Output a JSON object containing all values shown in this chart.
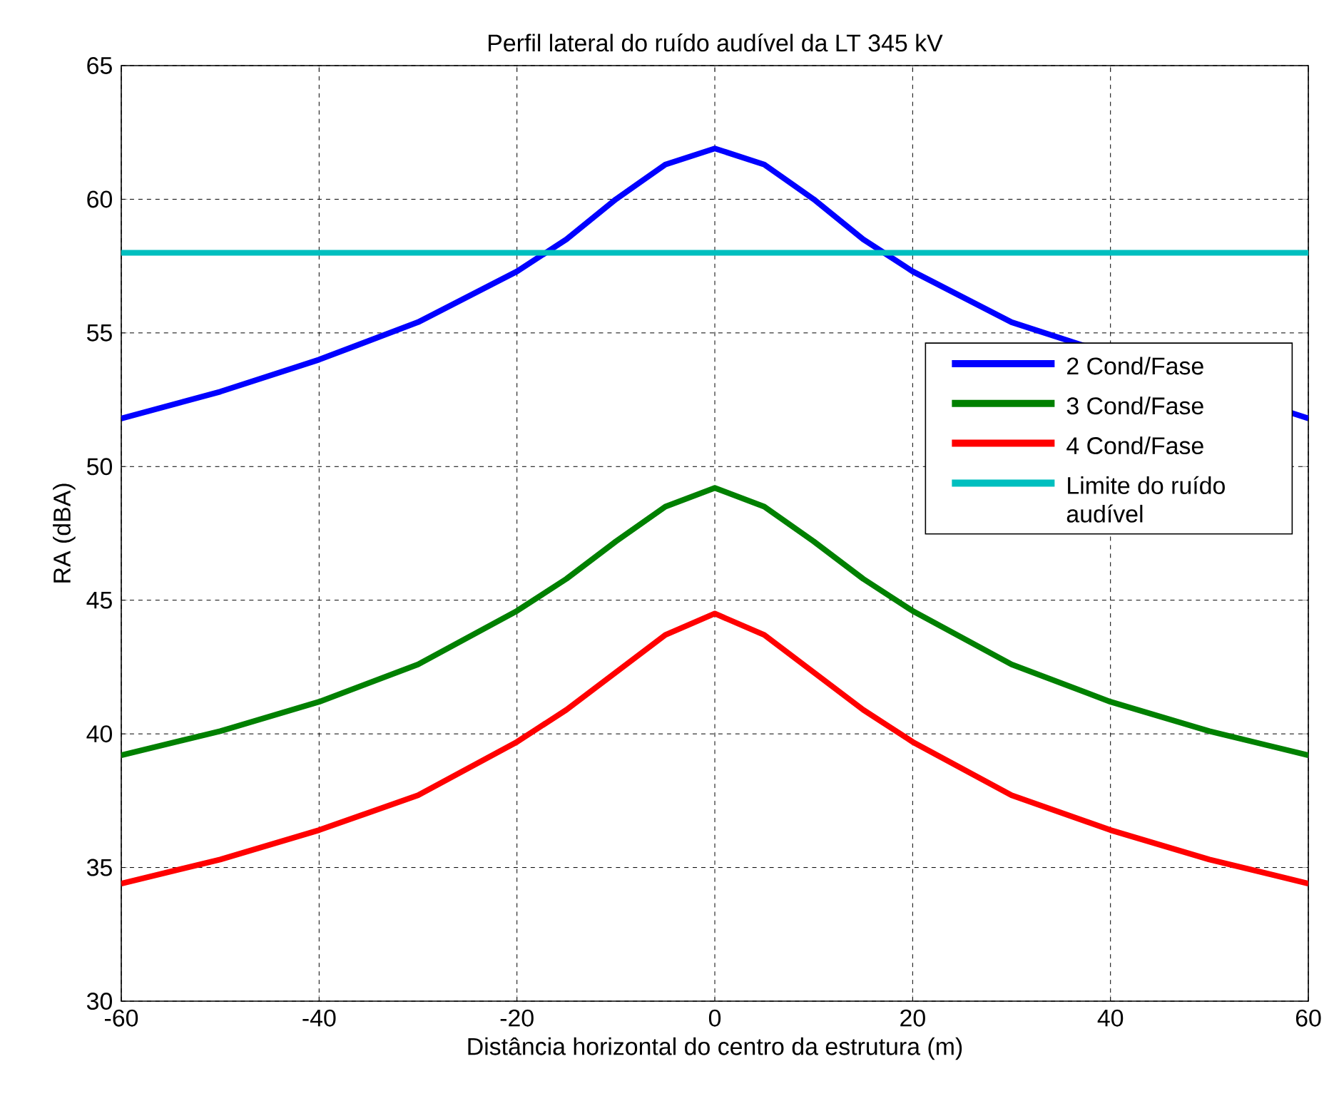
{
  "chart_data": {
    "type": "line",
    "title": "Perfil lateral do ruído audível da LT 345 kV",
    "xlabel": "Distância horizontal do centro da estrutura (m)",
    "ylabel": "RA (dBA)",
    "xlim": [
      -60,
      60
    ],
    "ylim": [
      30,
      65
    ],
    "xticks": [
      -60,
      -40,
      -20,
      0,
      20,
      40,
      60
    ],
    "yticks": [
      30,
      35,
      40,
      45,
      50,
      55,
      60,
      65
    ],
    "grid": true,
    "legend": "right",
    "marker": "none",
    "line_style": "solid",
    "x": [
      -60,
      -50,
      -40,
      -30,
      -20,
      -15,
      -10,
      -5,
      0,
      5,
      10,
      15,
      20,
      30,
      40,
      50,
      60
    ],
    "series": [
      {
        "name": "2 Cond/Fase",
        "color": "#0000ff",
        "values": [
          51.8,
          52.8,
          54.0,
          55.4,
          57.3,
          58.5,
          60.0,
          61.3,
          61.9,
          61.3,
          60.0,
          58.5,
          57.3,
          55.4,
          null,
          null,
          51.8
        ]
      },
      {
        "name": "3 Cond/Fase",
        "color": "#008000",
        "values": [
          39.2,
          40.1,
          41.2,
          42.6,
          44.6,
          45.8,
          47.2,
          48.5,
          49.2,
          48.5,
          47.2,
          45.8,
          44.6,
          42.6,
          41.2,
          40.1,
          39.2
        ]
      },
      {
        "name": "4 Cond/Fase",
        "color": "#ff0000",
        "values": [
          34.4,
          35.3,
          36.4,
          37.7,
          39.7,
          40.9,
          42.3,
          43.7,
          44.5,
          43.7,
          42.3,
          40.9,
          39.7,
          37.7,
          36.4,
          35.3,
          34.4
        ]
      },
      {
        "name": "Limite do ruído audível",
        "color": "#00bfbf",
        "x": [
          -60,
          60
        ],
        "values": [
          58,
          58
        ]
      }
    ]
  }
}
